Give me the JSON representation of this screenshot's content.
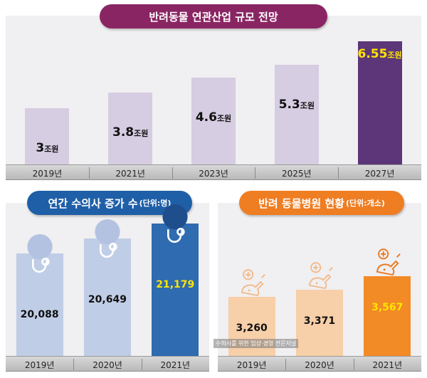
{
  "chart_data": [
    {
      "type": "bar",
      "title": "반려동물 연관산업 규모 전망",
      "categories": [
        "2019년",
        "2021년",
        "2023년",
        "2025년",
        "2027년"
      ],
      "values": [
        3,
        3.8,
        4.6,
        5.3,
        6.55
      ],
      "value_labels": [
        "3",
        "3.8",
        "4.6",
        "5.3",
        "6.55"
      ],
      "unit": "조원",
      "ylim": [
        0,
        6.8
      ],
      "highlight_index": 4,
      "colors": {
        "bar": "#d6cde2",
        "highlight": "#5c3679",
        "highlight_label": "#ffe500"
      }
    },
    {
      "type": "bar",
      "title": "연간 수의사 증가 수",
      "title_unit": "(단위:명)",
      "categories": [
        "2019년",
        "2020년",
        "2021년"
      ],
      "values": [
        20088,
        20649,
        21179
      ],
      "value_labels": [
        "20,088",
        "20,649",
        "21,179"
      ],
      "ylim": [
        0,
        21179
      ],
      "highlight_index": 2,
      "icon": "stethoscope-icon",
      "colors": {
        "bar": "#c0cde6",
        "highlight": "#2e6bb0",
        "highlight_label": "#ffe500"
      }
    },
    {
      "type": "bar",
      "title": "반려 동물병원 현황",
      "title_unit": "(단위:개소)",
      "categories": [
        "2019년",
        "2020년",
        "2021년"
      ],
      "values": [
        3260,
        3371,
        3567
      ],
      "value_labels": [
        "3,260",
        "3,371",
        "3,567"
      ],
      "ylim": [
        0,
        3567
      ],
      "highlight_index": 2,
      "icon": "vet-clinic-icon",
      "colors": {
        "bar": "#f7cfa8",
        "highlight": "#f28a26",
        "highlight_label": "#ffe500"
      }
    }
  ],
  "watermark": "수의사를 위한 임상·경영 전문저널"
}
